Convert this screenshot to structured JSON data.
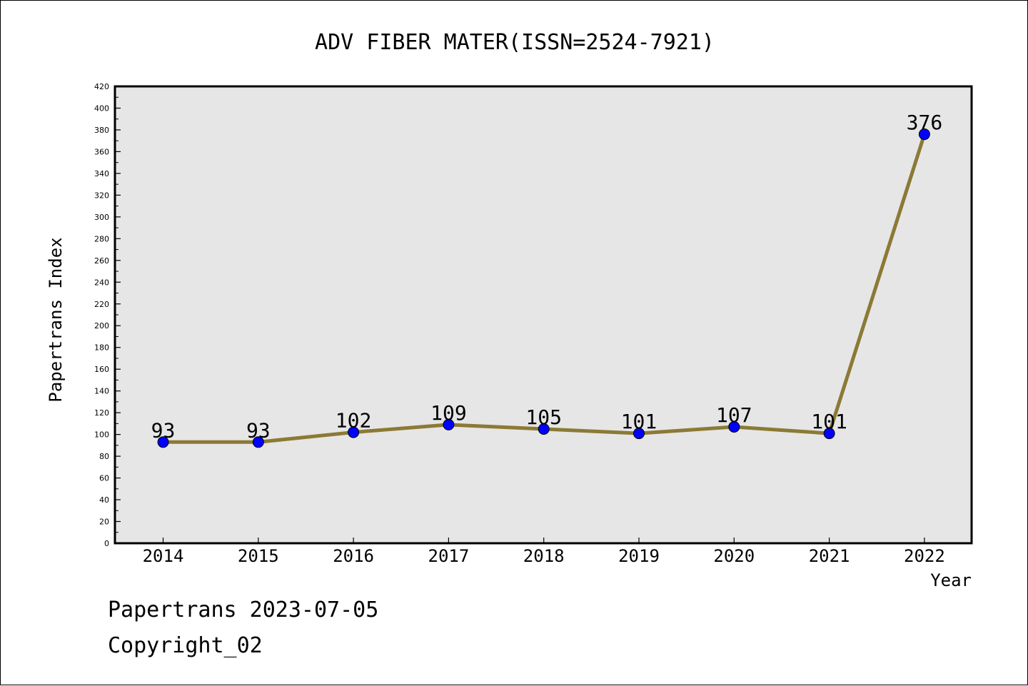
{
  "chart_data": {
    "type": "line",
    "title": "ADV FIBER MATER(ISSN=2524-7921)",
    "xlabel": "Year",
    "ylabel": "Papertrans Index",
    "categories": [
      "2014",
      "2015",
      "2016",
      "2017",
      "2018",
      "2019",
      "2020",
      "2021",
      "2022"
    ],
    "values": [
      93,
      93,
      102,
      109,
      105,
      101,
      107,
      101,
      376
    ],
    "ylim": [
      0,
      420
    ],
    "ytick_step": 20,
    "grid": false,
    "legend": "none",
    "colors": {
      "line": "#8B7A35",
      "marker": "#0000FF",
      "plot_bg": "#E6E6E6",
      "axes": "#000000"
    }
  },
  "footer": {
    "line1": "Papertrans 2023-07-05",
    "line2": "Copyright_02"
  }
}
